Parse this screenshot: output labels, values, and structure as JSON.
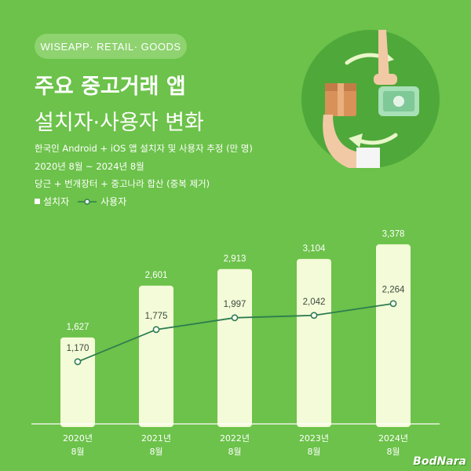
{
  "header": {
    "badge": "WISEAPP· RETAIL· GOODS",
    "title_line1": "주요 중고거래 앱",
    "title_line2": "설치자·사용자 변화",
    "subtitle1": "한국인 Android + iOS 앱 설치자 및 사용자 추정 (만 명)",
    "subtitle2": "2020년 8월 ~ 2024년 8월",
    "subtitle3": "당근 + 번개장터 + 중고나라 합산 (중복 제거)"
  },
  "legend": {
    "installers": "설치자",
    "users": "사용자"
  },
  "colors": {
    "background": "#6cc24a",
    "bar": "#f4fbd9",
    "line": "#2e7d4f",
    "deco_circle": "#4fa83a"
  },
  "chart_data": {
    "type": "bar",
    "categories": [
      [
        "2020년",
        "8월"
      ],
      [
        "2021년",
        "8월"
      ],
      [
        "2022년",
        "8월"
      ],
      [
        "2023년",
        "8월"
      ],
      [
        "2024년",
        "8월"
      ]
    ],
    "series": [
      {
        "name": "설치자",
        "type": "bar",
        "values": [
          1627,
          2601,
          2913,
          3104,
          3378
        ],
        "labels": [
          "1,627",
          "2,601",
          "2,913",
          "3,104",
          "3,378"
        ]
      },
      {
        "name": "사용자",
        "type": "line",
        "values": [
          1170,
          1775,
          1997,
          2042,
          2264
        ],
        "labels": [
          "1,170",
          "1,775",
          "1,997",
          "2,042",
          "2,264"
        ]
      }
    ]
  },
  "watermark": "BodNara"
}
